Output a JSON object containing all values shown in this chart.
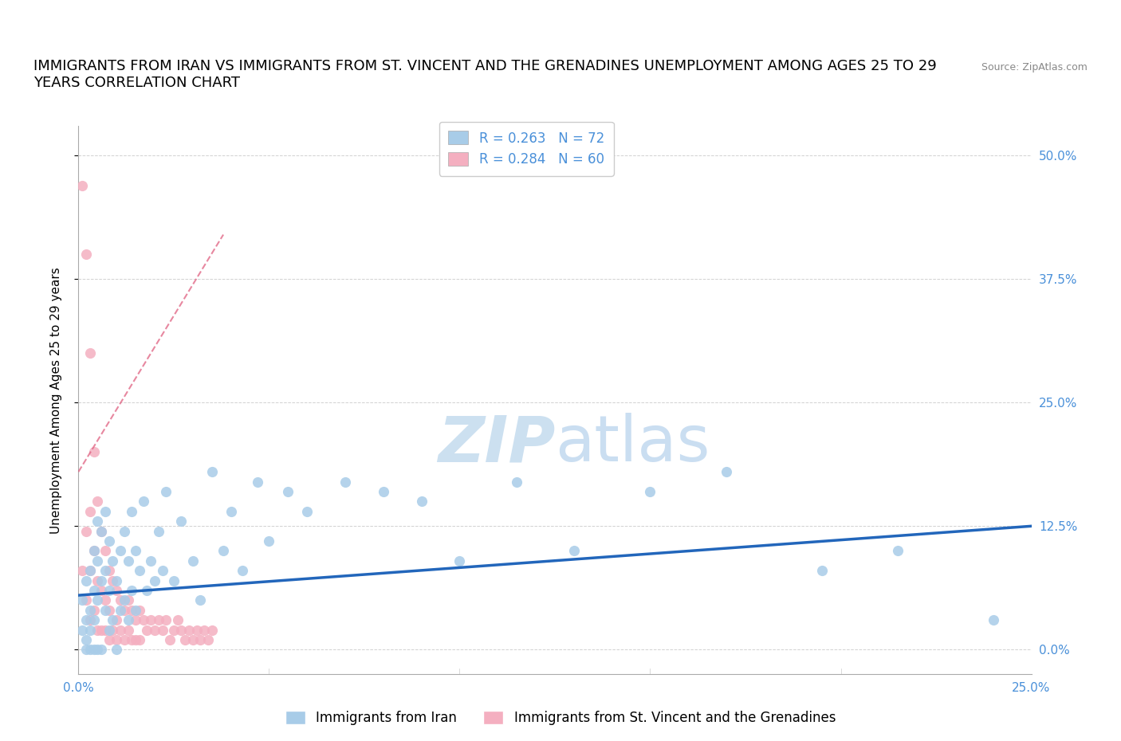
{
  "title_line1": "IMMIGRANTS FROM IRAN VS IMMIGRANTS FROM ST. VINCENT AND THE GRENADINES UNEMPLOYMENT AMONG AGES 25 TO 29",
  "title_line2": "YEARS CORRELATION CHART",
  "source_text": "Source: ZipAtlas.com",
  "ylabel": "Unemployment Among Ages 25 to 29 years",
  "legend_iran": "Immigrants from Iran",
  "legend_svg": "Immigrants from St. Vincent and the Grenadines",
  "R_iran": 0.263,
  "N_iran": 72,
  "R_svg": 0.284,
  "N_svg": 60,
  "color_iran": "#a8cce8",
  "color_svg": "#f4afc0",
  "trendline_iran_color": "#2266bb",
  "trendline_svg_color": "#e06080",
  "tick_label_color": "#4a90d9",
  "grid_color": "#cccccc",
  "watermark_color": "#cce0f0",
  "iran_x": [
    0.001,
    0.001,
    0.002,
    0.002,
    0.002,
    0.002,
    0.003,
    0.003,
    0.003,
    0.003,
    0.004,
    0.004,
    0.004,
    0.004,
    0.005,
    0.005,
    0.005,
    0.005,
    0.006,
    0.006,
    0.006,
    0.007,
    0.007,
    0.007,
    0.008,
    0.008,
    0.008,
    0.009,
    0.009,
    0.01,
    0.01,
    0.011,
    0.011,
    0.012,
    0.012,
    0.013,
    0.013,
    0.014,
    0.014,
    0.015,
    0.015,
    0.016,
    0.017,
    0.018,
    0.019,
    0.02,
    0.021,
    0.022,
    0.023,
    0.025,
    0.027,
    0.03,
    0.032,
    0.035,
    0.038,
    0.04,
    0.043,
    0.047,
    0.05,
    0.055,
    0.06,
    0.07,
    0.08,
    0.09,
    0.1,
    0.115,
    0.13,
    0.15,
    0.17,
    0.195,
    0.215,
    0.24
  ],
  "iran_y": [
    0.05,
    0.02,
    0.0,
    0.03,
    0.07,
    0.01,
    0.0,
    0.04,
    0.08,
    0.02,
    0.0,
    0.06,
    0.1,
    0.03,
    0.0,
    0.05,
    0.09,
    0.13,
    0.0,
    0.07,
    0.12,
    0.04,
    0.08,
    0.14,
    0.02,
    0.06,
    0.11,
    0.03,
    0.09,
    0.0,
    0.07,
    0.04,
    0.1,
    0.05,
    0.12,
    0.03,
    0.09,
    0.06,
    0.14,
    0.04,
    0.1,
    0.08,
    0.15,
    0.06,
    0.09,
    0.07,
    0.12,
    0.08,
    0.16,
    0.07,
    0.13,
    0.09,
    0.05,
    0.18,
    0.1,
    0.14,
    0.08,
    0.17,
    0.11,
    0.16,
    0.14,
    0.17,
    0.16,
    0.15,
    0.09,
    0.17,
    0.1,
    0.16,
    0.18,
    0.08,
    0.1,
    0.03
  ],
  "svg_x": [
    0.001,
    0.001,
    0.002,
    0.002,
    0.002,
    0.003,
    0.003,
    0.003,
    0.003,
    0.004,
    0.004,
    0.004,
    0.005,
    0.005,
    0.005,
    0.006,
    0.006,
    0.006,
    0.007,
    0.007,
    0.007,
    0.008,
    0.008,
    0.008,
    0.009,
    0.009,
    0.01,
    0.01,
    0.01,
    0.011,
    0.011,
    0.012,
    0.012,
    0.013,
    0.013,
    0.014,
    0.014,
    0.015,
    0.015,
    0.016,
    0.016,
    0.017,
    0.018,
    0.019,
    0.02,
    0.021,
    0.022,
    0.023,
    0.024,
    0.025,
    0.026,
    0.027,
    0.028,
    0.029,
    0.03,
    0.031,
    0.032,
    0.033,
    0.034,
    0.035
  ],
  "svg_y": [
    0.47,
    0.08,
    0.4,
    0.12,
    0.05,
    0.3,
    0.14,
    0.08,
    0.03,
    0.2,
    0.1,
    0.04,
    0.15,
    0.07,
    0.02,
    0.12,
    0.06,
    0.02,
    0.1,
    0.05,
    0.02,
    0.08,
    0.04,
    0.01,
    0.07,
    0.02,
    0.06,
    0.03,
    0.01,
    0.05,
    0.02,
    0.04,
    0.01,
    0.05,
    0.02,
    0.04,
    0.01,
    0.03,
    0.01,
    0.04,
    0.01,
    0.03,
    0.02,
    0.03,
    0.02,
    0.03,
    0.02,
    0.03,
    0.01,
    0.02,
    0.03,
    0.02,
    0.01,
    0.02,
    0.01,
    0.02,
    0.01,
    0.02,
    0.01,
    0.02
  ],
  "xmin": 0.0,
  "xmax": 0.25,
  "ymin": -0.025,
  "ymax": 0.53,
  "yticks": [
    0.0,
    0.125,
    0.25,
    0.375,
    0.5
  ],
  "ytick_labels": [
    "0.0%",
    "12.5%",
    "25.0%",
    "37.5%",
    "50.0%"
  ],
  "xticks": [
    0.0,
    0.25
  ],
  "xtick_labels": [
    "0.0%",
    "25.0%"
  ],
  "title_fontsize": 13,
  "label_fontsize": 11,
  "tick_fontsize": 11,
  "legend_fontsize": 12,
  "iran_trend_x0": 0.0,
  "iran_trend_x1": 0.25,
  "iran_trend_y0": 0.055,
  "iran_trend_y1": 0.125,
  "svg_trend_x0": 0.0,
  "svg_trend_x1": 0.038,
  "svg_trend_y0": 0.18,
  "svg_trend_y1": 0.42
}
